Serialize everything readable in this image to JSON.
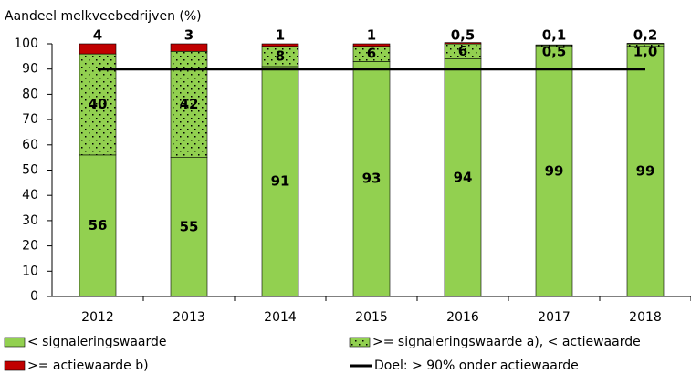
{
  "chart_data": {
    "type": "stacked-bar",
    "y_label": "Aandeel melkveebedrijven (%)",
    "categories": [
      "2012",
      "2013",
      "2014",
      "2015",
      "2016",
      "2017",
      "2018"
    ],
    "series": [
      {
        "name": "<  signaleringswaarde",
        "color": "#92d050",
        "values": [
          56,
          55,
          91,
          93,
          94,
          99,
          99
        ]
      },
      {
        "name": ">= signaleringswaarde a), <  actiewaarde",
        "color": "#92d050",
        "pattern": "dots",
        "values": [
          40,
          42,
          8,
          6,
          6,
          0.5,
          1.0
        ],
        "value_labels": [
          "40",
          "42",
          "8",
          "6",
          "6",
          "0,5",
          "1,0"
        ]
      },
      {
        "name": ">=  actiewaarde b)",
        "color": "#c00000",
        "values": [
          4,
          3,
          1,
          1,
          0.5,
          0.1,
          0.2
        ],
        "value_labels": [
          "4",
          "3",
          "1",
          "1",
          "0,5",
          "0,1",
          "0,2"
        ]
      }
    ],
    "target": {
      "name": "Doel: > 90% onder actiewaarde",
      "value": 90,
      "color": "#000000"
    },
    "ylim": [
      0,
      100
    ],
    "yticks": [
      0,
      10,
      20,
      30,
      40,
      50,
      60,
      70,
      80,
      90,
      100
    ],
    "grid": false
  }
}
